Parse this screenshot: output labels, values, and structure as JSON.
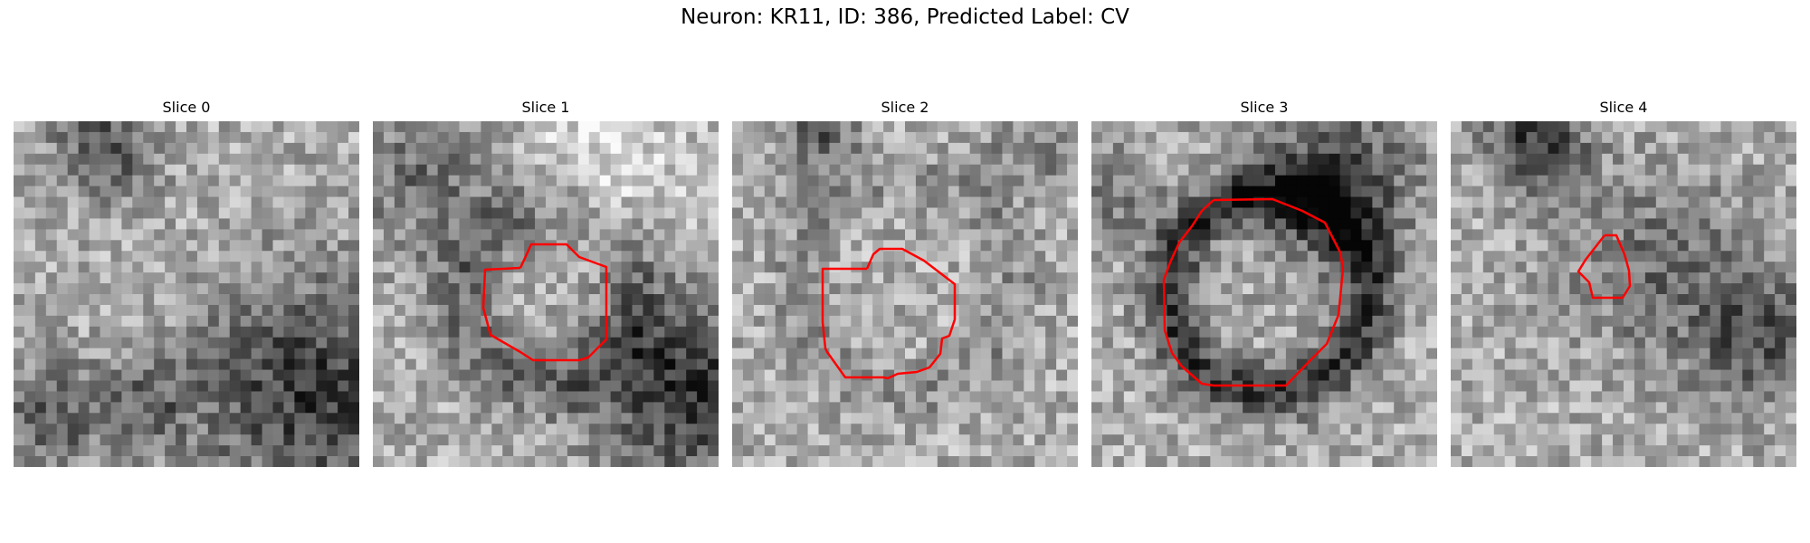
{
  "figure": {
    "title": "Neuron: KR11, ID: 386, Predicted Label: CV"
  },
  "contour_color": "#ff0000",
  "panels": [
    {
      "title": "Slice 0",
      "has_contour": false,
      "seed": 11,
      "tone": "mixed"
    },
    {
      "title": "Slice 1",
      "has_contour": true,
      "seed": 23,
      "tone": "bright"
    },
    {
      "title": "Slice 2",
      "has_contour": true,
      "seed": 37,
      "tone": "noisy"
    },
    {
      "title": "Slice 3",
      "has_contour": true,
      "seed": 41,
      "tone": "ring"
    },
    {
      "title": "Slice 4",
      "has_contour": true,
      "seed": 53,
      "tone": "mixed"
    }
  ]
}
